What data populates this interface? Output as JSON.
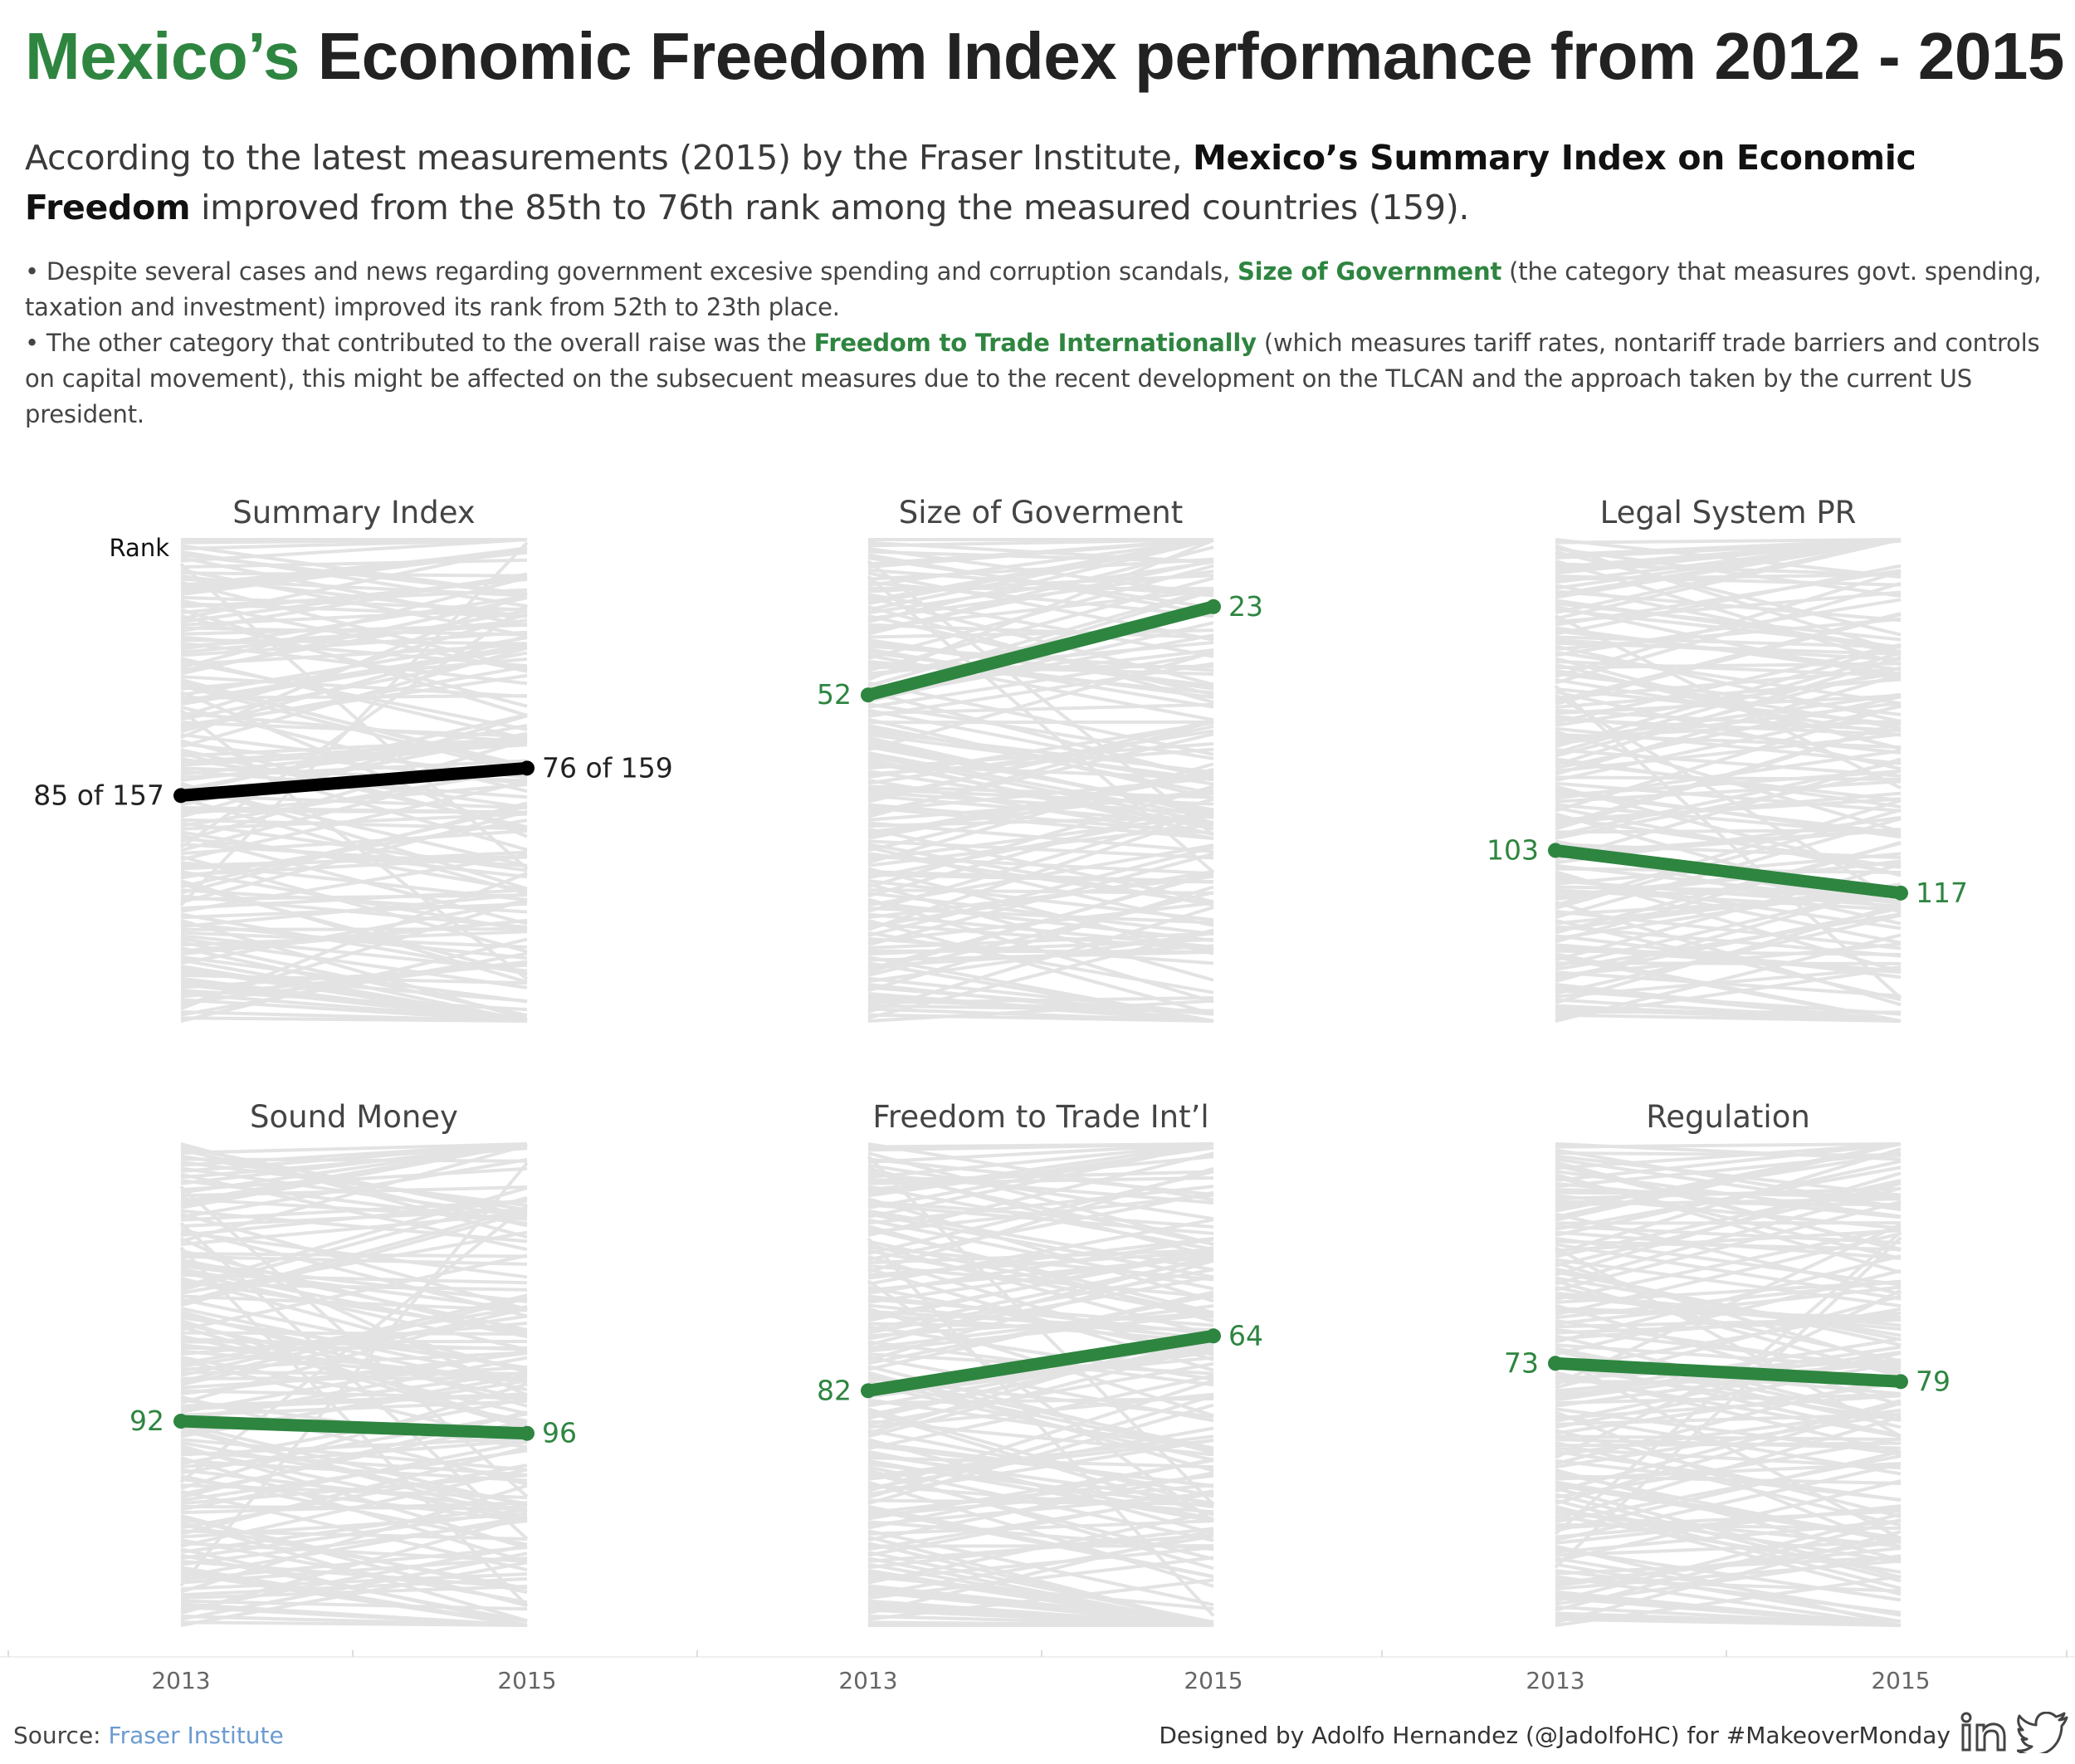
{
  "header": {
    "title_highlight": "Mexico’s",
    "title_rest": "Economic Freedom Index performance from 2012 - 2015",
    "lead_part1": "According to the latest measurements (2015) by the Fraser Institute, ",
    "lead_bold": "Mexico’s Summary Index on Economic Freedom",
    "lead_part2": " improved from the 85th to 76th rank among the measured countries (159).",
    "bullet1_part1": "• Despite several cases and news regarding government excesive spending and corruption scandals, ",
    "bullet1_highlight": "Size of Government",
    "bullet1_part2": " (the category that measures govt. spending, taxation and investment) improved its rank from 52th to 23th place.",
    "bullet2_part1": "• The other category that contributed to the overall raise was the ",
    "bullet2_highlight": "Freedom to Trade Internationally",
    "bullet2_part2": " (which measures tariff rates, nontariff trade barriers and controls on capital movement), this might be affected on the subsecuent measures due to the recent development on the TLCAN and the approach taken by the current US president."
  },
  "footer": {
    "source_label": "Source: ",
    "source_link": "Fraser Institute",
    "credit": "Designed by Adolfo Hernandez (@JadolfoHC) for #MakeoverMonday",
    "linkedin_icon": "linkedin-icon",
    "twitter_icon": "twitter-icon"
  },
  "chart_data": {
    "type": "line",
    "subtype": "slope",
    "x": [
      "2013",
      "2015"
    ],
    "y_axis_label": "Rank",
    "y_reversed": true,
    "ylim": [
      1,
      159
    ],
    "background_series_color": "#e3e3e3",
    "highlight_color": "#2e8540",
    "summary_color": "#000000",
    "panels": [
      {
        "title": "Summary Index",
        "values": [
          85,
          76
        ],
        "labels": [
          "85 of 157",
          "76 of 159"
        ],
        "color": "#000000",
        "show_axis_label": true
      },
      {
        "title": "Size of Goverment",
        "values": [
          52,
          23
        ],
        "labels": [
          "52",
          "23"
        ],
        "color": "#2e8540",
        "show_axis_label": false
      },
      {
        "title": "Legal System PR",
        "values": [
          103,
          117
        ],
        "labels": [
          "103",
          "117"
        ],
        "color": "#2e8540",
        "show_axis_label": false
      },
      {
        "title": "Sound Money",
        "values": [
          92,
          96
        ],
        "labels": [
          "92",
          "96"
        ],
        "color": "#2e8540",
        "show_axis_label": false
      },
      {
        "title": "Freedom to Trade Int’l",
        "values": [
          82,
          64
        ],
        "labels": [
          "82",
          "64"
        ],
        "color": "#2e8540",
        "show_axis_label": false
      },
      {
        "title": "Regulation",
        "values": [
          73,
          79
        ],
        "labels": [
          "73",
          "79"
        ],
        "color": "#2e8540",
        "show_axis_label": false
      }
    ]
  }
}
